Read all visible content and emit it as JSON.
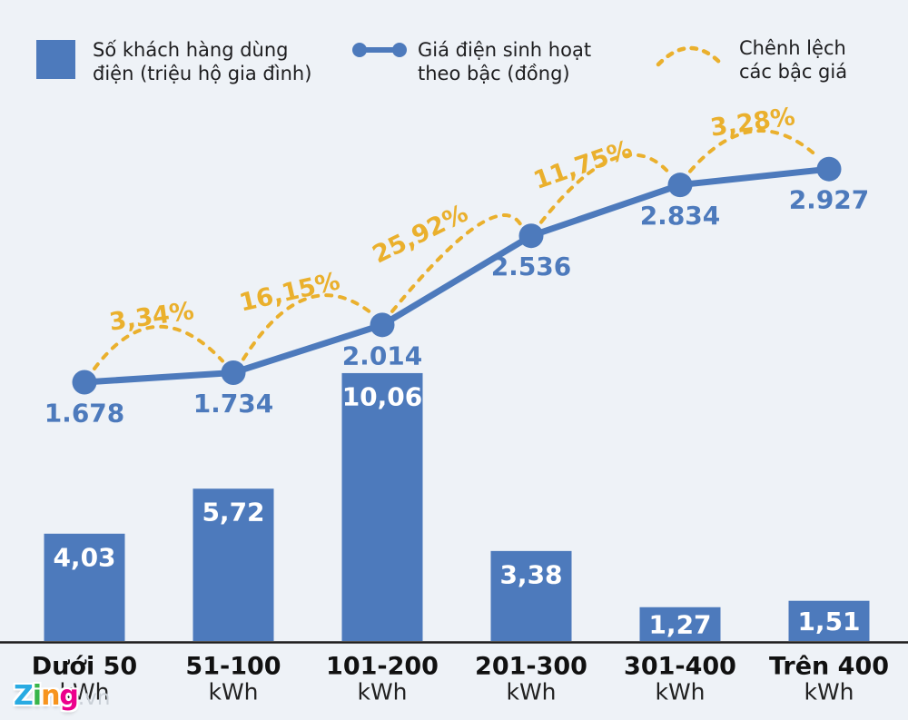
{
  "colors": {
    "background": "#eef2f7",
    "primary_blue": "#4d7abc",
    "accent_yellow": "#eab02d",
    "bar_value_text": "#ffffff",
    "axis_line": "#1b1b1b",
    "category_text": "#111111",
    "legend_text": "#1d1d1f",
    "logo_suffix": "#c9cfd6"
  },
  "legend": {
    "items": [
      {
        "id": "customers",
        "icon": "bar-swatch",
        "lines": [
          "Số khách hàng dùng",
          "điện (triệu hộ gia đình)"
        ]
      },
      {
        "id": "price",
        "icon": "line-marker",
        "lines": [
          "Giá điện sinh hoạt",
          "theo bậc (đồng)"
        ]
      },
      {
        "id": "difference",
        "icon": "dashed-arc",
        "lines": [
          "Chênh lệch",
          "các bậc giá"
        ]
      }
    ]
  },
  "chart_data": {
    "type": "bar+line combo",
    "categories": [
      "Dưới 50",
      "51-100",
      "101-200",
      "201-300",
      "301-400",
      "Trên 400"
    ],
    "category_unit": "kWh",
    "series": [
      {
        "name": "Số khách hàng dùng điện (triệu hộ gia đình)",
        "type": "bar",
        "values": [
          4.03,
          5.72,
          10.06,
          3.38,
          1.27,
          1.51
        ],
        "labels": [
          "4,03",
          "5,72",
          "10,06",
          "3,38",
          "1,27",
          "1,51"
        ]
      },
      {
        "name": "Giá điện sinh hoạt theo bậc (đồng)",
        "type": "line",
        "values": [
          1678,
          1734,
          2014,
          2536,
          2834,
          2927
        ],
        "labels": [
          "1.678",
          "1.734",
          "2.014",
          "2.536",
          "2.834",
          "2.927"
        ]
      },
      {
        "name": "Chênh lệch các bậc giá",
        "type": "arc-percent",
        "labels": [
          "3,34%",
          "16,15%",
          "25,92%",
          "11,75%",
          "3,28%"
        ]
      }
    ],
    "axis": {
      "x_visible": true,
      "y_visible": false,
      "gridlines": false
    },
    "legend_position": "top"
  },
  "logo": {
    "word": [
      {
        "ch": "Z",
        "color": "#29abe2"
      },
      {
        "ch": "i",
        "color": "#39b54a"
      },
      {
        "ch": "n",
        "color": "#f7941e"
      },
      {
        "ch": "g",
        "color": "#ec008c"
      }
    ],
    "suffix": ".vn"
  }
}
